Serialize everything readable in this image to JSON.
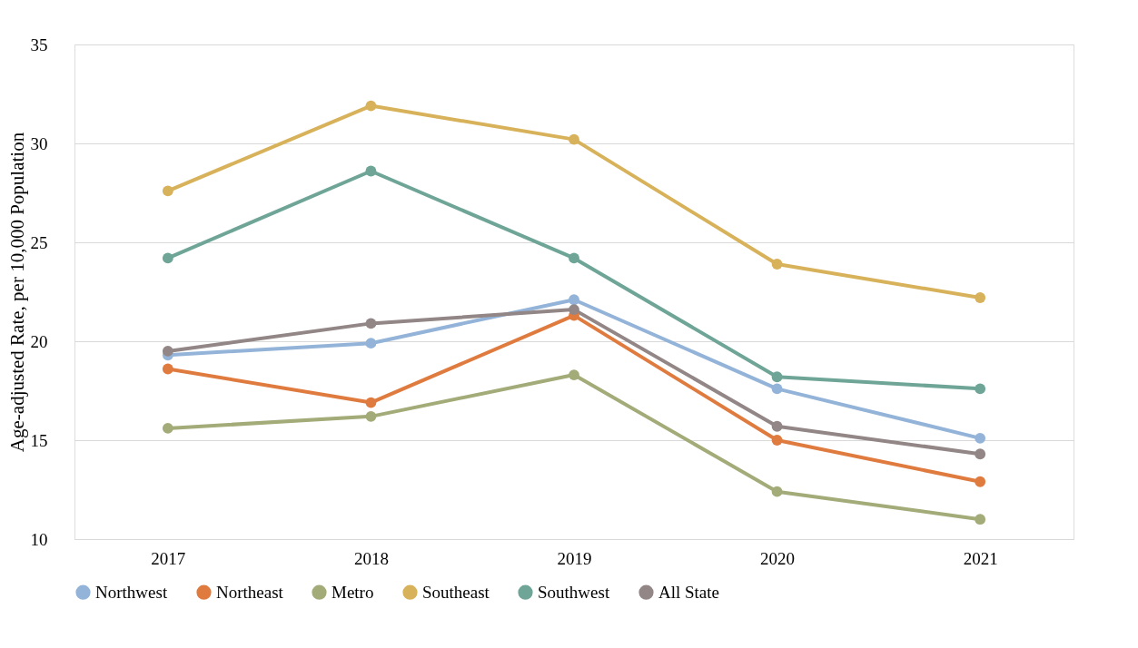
{
  "chart_data": {
    "type": "line",
    "ylabel": "Age-adjusted Rate, per 10,000 Population",
    "categories": [
      "2017",
      "2018",
      "2019",
      "2020",
      "2021"
    ],
    "ylim": [
      10,
      35
    ],
    "yticks": [
      10,
      15,
      20,
      25,
      30,
      35
    ],
    "grid": "y",
    "legend": "bottom",
    "marker": "circle",
    "line_style": "solid",
    "series": [
      {
        "name": "Northwest",
        "color": "#93b4d8",
        "values": [
          19.3,
          19.9,
          22.1,
          17.6,
          15.1
        ]
      },
      {
        "name": "Northeast",
        "color": "#e07b3f",
        "values": [
          18.6,
          16.9,
          21.3,
          15.0,
          12.9
        ]
      },
      {
        "name": "Metro",
        "color": "#a3ab78",
        "values": [
          15.6,
          16.2,
          18.3,
          12.4,
          11.0
        ]
      },
      {
        "name": "Southeast",
        "color": "#d8b25a",
        "values": [
          27.6,
          31.9,
          30.2,
          23.9,
          22.2
        ]
      },
      {
        "name": "Southwest",
        "color": "#6fa597",
        "values": [
          24.2,
          28.6,
          24.2,
          18.2,
          17.6
        ]
      },
      {
        "name": "All State",
        "color": "#928686",
        "values": [
          19.5,
          20.9,
          21.6,
          15.7,
          14.3
        ]
      }
    ]
  }
}
